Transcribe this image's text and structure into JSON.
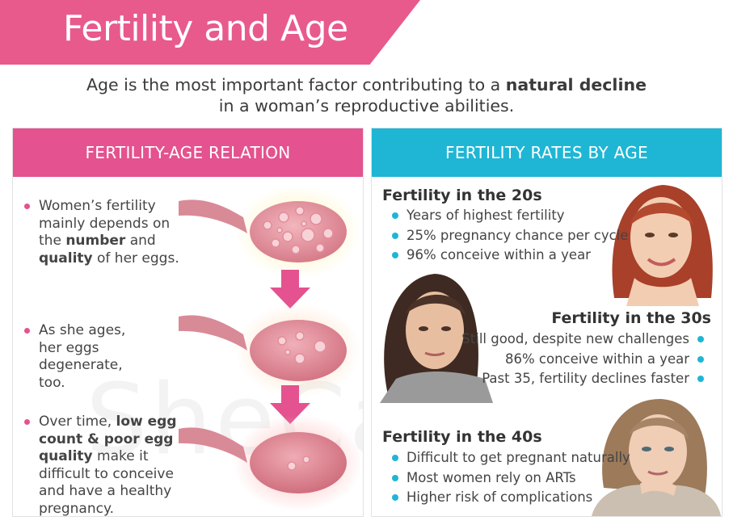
{
  "title": "Fertility and Age",
  "subtitle": {
    "part1": "Age is the most important factor contributing to a ",
    "bold": "natural decline",
    "part2": "in a woman’s reproductive abilities."
  },
  "watermark": "SheCares",
  "left_panel": {
    "heading": "FERTILITY-AGE RELATION",
    "items": [
      {
        "t1": "Women’s fertility mainly depends on the ",
        "b1": "number",
        "t2": " and ",
        "b2": "quality",
        "t3": " of her eggs."
      },
      {
        "text": "As she ages, her eggs degenerate, too."
      },
      {
        "t1": "Over time, ",
        "b1": "low egg count & poor egg quality",
        "t2": " make it difficult to conceive and have a healthy pregnancy."
      }
    ]
  },
  "right_panel": {
    "heading": "FERTILITY RATES BY AGE",
    "groups": [
      {
        "title": "Fertility in the 20s",
        "items": [
          "Years of highest fertility",
          "25% pregnancy chance per cycle",
          "96% conceive within a year"
        ]
      },
      {
        "title": "Fertility in the 30s",
        "items": [
          "Still good, despite new challenges",
          "86% conceive within a year",
          "Past 35, fertility declines faster"
        ]
      },
      {
        "title": "Fertility in the 40s",
        "items": [
          "Difficult to get pregnant naturally",
          "Most women rely on ARTs",
          "Higher risk of complications"
        ]
      }
    ]
  },
  "colors": {
    "pink": "#e4528f",
    "cyan": "#1fb6d5",
    "banner": "#e85a8c"
  },
  "icons": [
    "ovary-illustration",
    "down-arrow-icon",
    "woman-portrait"
  ]
}
